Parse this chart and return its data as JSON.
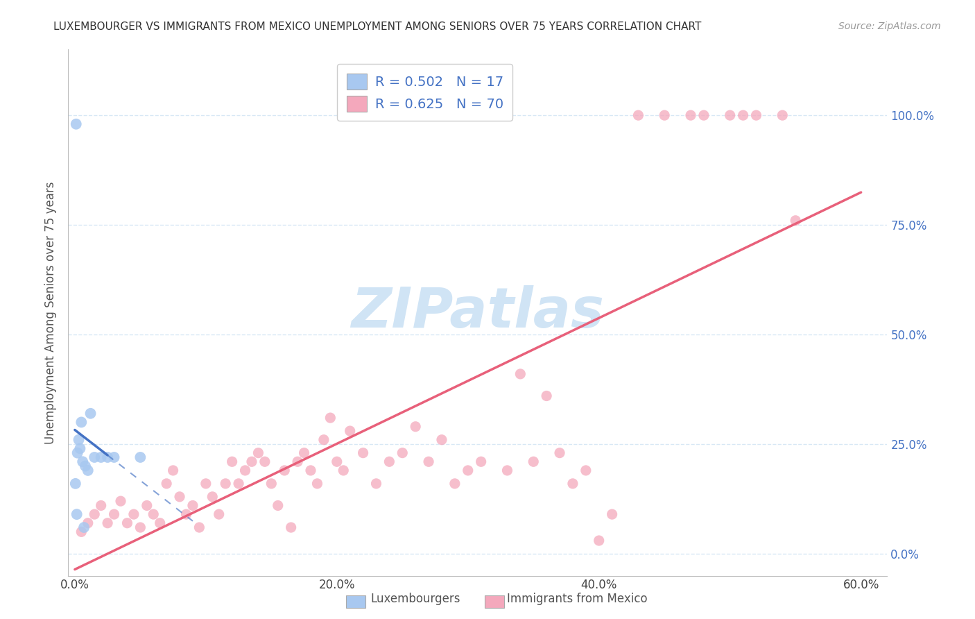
{
  "title": "LUXEMBOURGER VS IMMIGRANTS FROM MEXICO UNEMPLOYMENT AMONG SENIORS OVER 75 YEARS CORRELATION CHART",
  "source": "Source: ZipAtlas.com",
  "ylabel": "Unemployment Among Seniors over 75 years",
  "lux_R": 0.502,
  "lux_N": 17,
  "mex_R": 0.625,
  "mex_N": 70,
  "blue_scatter_color": "#A8C8F0",
  "pink_scatter_color": "#F4A8BC",
  "blue_line_color": "#4472C4",
  "pink_line_color": "#E8607A",
  "watermark_color": "#D0E4F5",
  "lux_x": [
    0.5,
    1.2,
    1.5,
    2.0,
    2.5,
    0.3,
    0.4,
    0.6,
    0.8,
    1.0,
    3.0,
    5.0,
    0.2,
    0.15,
    0.05,
    0.7,
    0.1
  ],
  "lux_y": [
    30.0,
    32.0,
    22.0,
    22.0,
    22.0,
    26.0,
    24.0,
    21.0,
    20.0,
    19.0,
    22.0,
    22.0,
    23.0,
    9.0,
    16.0,
    6.0,
    98.0
  ],
  "mex_x": [
    0.5,
    1.0,
    1.5,
    2.0,
    2.5,
    3.0,
    3.5,
    4.0,
    4.5,
    5.0,
    5.5,
    6.0,
    6.5,
    7.0,
    7.5,
    8.0,
    8.5,
    9.0,
    9.5,
    10.0,
    10.5,
    11.0,
    11.5,
    12.0,
    12.5,
    13.0,
    13.5,
    14.0,
    14.5,
    15.0,
    15.5,
    16.0,
    16.5,
    17.0,
    17.5,
    18.0,
    18.5,
    19.0,
    19.5,
    20.0,
    20.5,
    21.0,
    22.0,
    23.0,
    24.0,
    25.0,
    26.0,
    27.0,
    28.0,
    29.0,
    30.0,
    31.0,
    33.0,
    34.0,
    35.0,
    36.0,
    37.0,
    38.0,
    39.0,
    40.0,
    41.0,
    43.0,
    45.0,
    47.0,
    48.0,
    50.0,
    51.0,
    52.0,
    54.0,
    55.0
  ],
  "mex_y": [
    5.0,
    7.0,
    9.0,
    11.0,
    7.0,
    9.0,
    12.0,
    7.0,
    9.0,
    6.0,
    11.0,
    9.0,
    7.0,
    16.0,
    19.0,
    13.0,
    9.0,
    11.0,
    6.0,
    16.0,
    13.0,
    9.0,
    16.0,
    21.0,
    16.0,
    19.0,
    21.0,
    23.0,
    21.0,
    16.0,
    11.0,
    19.0,
    6.0,
    21.0,
    23.0,
    19.0,
    16.0,
    26.0,
    31.0,
    21.0,
    19.0,
    28.0,
    23.0,
    16.0,
    21.0,
    23.0,
    29.0,
    21.0,
    26.0,
    16.0,
    19.0,
    21.0,
    19.0,
    41.0,
    21.0,
    36.0,
    23.0,
    16.0,
    19.0,
    3.0,
    9.0,
    100.0,
    100.0,
    100.0,
    100.0,
    100.0,
    100.0,
    100.0,
    100.0,
    76.0
  ],
  "xlim": [
    -0.5,
    62
  ],
  "ylim": [
    -5,
    115
  ],
  "xticks": [
    0,
    20,
    40,
    60
  ],
  "yticks": [
    0,
    25,
    50,
    75,
    100
  ],
  "figsize": [
    14.06,
    8.92
  ],
  "dpi": 100
}
